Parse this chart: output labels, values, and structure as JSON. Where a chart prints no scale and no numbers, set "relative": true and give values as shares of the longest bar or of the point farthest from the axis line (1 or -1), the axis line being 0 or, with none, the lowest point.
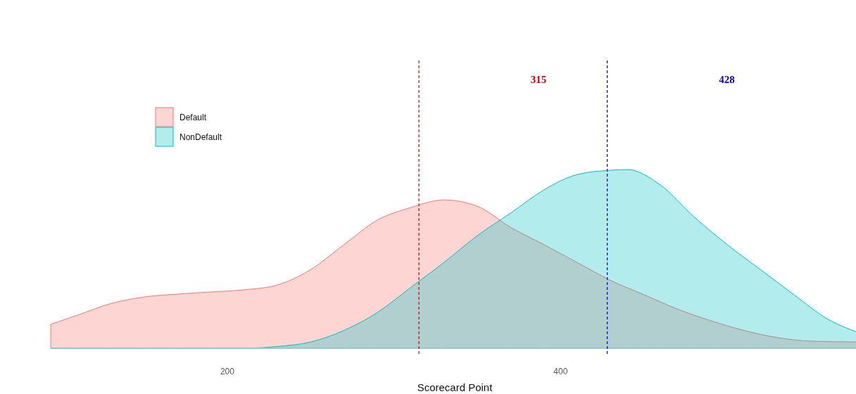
{
  "chart_data": {
    "type": "area",
    "xlabel": "Scorecard Point",
    "relative": true,
    "xlim": [
      94,
      579
    ],
    "xticks": [
      200,
      400
    ],
    "legend": "top left",
    "series": [
      {
        "name": "Default",
        "color": "#f8766d",
        "x": [
          94,
          110,
          130,
          150,
          170,
          190,
          210,
          230,
          250,
          270,
          290,
          310,
          330,
          350,
          370,
          390,
          410,
          430,
          450,
          470,
          490,
          510,
          530,
          550,
          579
        ],
        "values": [
          0.134,
          0.185,
          0.25,
          0.287,
          0.303,
          0.315,
          0.327,
          0.354,
          0.44,
          0.58,
          0.717,
          0.787,
          0.83,
          0.795,
          0.677,
          0.58,
          0.48,
          0.38,
          0.3,
          0.22,
          0.155,
          0.1,
          0.06,
          0.04,
          0.035
        ]
      },
      {
        "name": "NonDefault",
        "color": "#00bfc4",
        "x": [
          94,
          150,
          210,
          230,
          250,
          270,
          290,
          310,
          330,
          350,
          370,
          390,
          410,
          430,
          440,
          460,
          480,
          500,
          520,
          540,
          560,
          579
        ],
        "values": [
          0,
          0,
          0,
          0.01,
          0.035,
          0.1,
          0.2,
          0.34,
          0.48,
          0.63,
          0.756,
          0.886,
          0.972,
          0.996,
          1,
          0.913,
          0.736,
          0.58,
          0.44,
          0.3,
          0.165,
          0.087
        ]
      }
    ],
    "ref_lines": [
      {
        "axis": "x",
        "value": 315,
        "label": "315",
        "color": "#cc0000",
        "line_style": "dashed"
      },
      {
        "axis": "x",
        "value": 428,
        "label": "428",
        "color": "#0000cc",
        "line_style": "dashed"
      }
    ]
  }
}
